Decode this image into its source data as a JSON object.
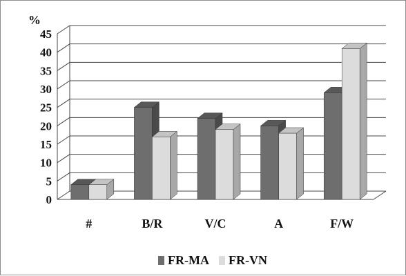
{
  "chart_data": {
    "type": "bar",
    "style": "3d-clustered-column",
    "unit_label": "%",
    "categories": [
      "#",
      "B/R",
      "V/C",
      "A",
      "F/W"
    ],
    "series": [
      {
        "name": "FR-MA",
        "values": [
          4,
          25,
          22,
          20,
          29
        ],
        "color": "#6e6e6e",
        "side_color": "#4a4a4a",
        "top_color": "#585858"
      },
      {
        "name": "FR-VN",
        "values": [
          4,
          17,
          19,
          18,
          41
        ],
        "color": "#dcdcdc",
        "side_color": "#a8a8a8",
        "top_color": "#c4c4c4"
      }
    ],
    "ylim": [
      0,
      45
    ],
    "yticks": [
      0,
      5,
      10,
      15,
      20,
      25,
      30,
      35,
      40,
      45
    ],
    "grid": true,
    "legend_position": "bottom"
  }
}
